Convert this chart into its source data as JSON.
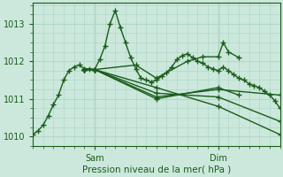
{
  "xlabel": "Pression niveau de la mer( hPa )",
  "bg_color": "#cce8dc",
  "grid_color": "#b0d8c8",
  "line_color": "#1a5c1a",
  "marker": "+",
  "linewidth": 1.0,
  "markersize": 4,
  "markeredgewidth": 1.0,
  "ylim": [
    1009.75,
    1013.55
  ],
  "xlim": [
    0,
    48
  ],
  "xtick_positions": [
    12,
    36
  ],
  "xtick_labels": [
    "Sam",
    "Dim"
  ],
  "ytick_positions": [
    1010,
    1011,
    1012,
    1013
  ],
  "vlines": [
    12,
    36
  ],
  "series": [
    {
      "x": [
        0,
        1,
        2,
        3,
        4,
        5,
        6,
        7,
        8,
        9,
        10,
        11,
        12,
        13,
        14,
        15,
        16,
        17,
        18,
        19,
        20,
        21,
        22,
        23,
        24,
        25,
        26,
        27,
        28,
        29,
        30,
        31,
        32,
        33,
        34,
        35,
        36,
        37,
        38,
        39,
        40,
        41,
        42,
        43,
        44,
        45,
        46,
        47,
        48
      ],
      "y": [
        1010.05,
        1010.15,
        1010.3,
        1010.55,
        1010.85,
        1011.1,
        1011.5,
        1011.75,
        1011.85,
        1011.9,
        1011.8,
        1011.8,
        1011.78,
        1012.05,
        1012.4,
        1013.0,
        1013.35,
        1012.9,
        1012.5,
        1012.1,
        1011.8,
        1011.55,
        1011.5,
        1011.45,
        1011.5,
        1011.6,
        1011.7,
        1011.85,
        1012.05,
        1012.15,
        1012.2,
        1012.1,
        1012.0,
        1011.95,
        1011.85,
        1011.8,
        1011.75,
        1011.85,
        1011.75,
        1011.65,
        1011.55,
        1011.5,
        1011.4,
        1011.35,
        1011.3,
        1011.2,
        1011.1,
        1010.95,
        1010.75
      ]
    },
    {
      "x": [
        10,
        12,
        24,
        36,
        48
      ],
      "y": [
        1011.78,
        1011.78,
        1011.3,
        1010.8,
        1010.05
      ]
    },
    {
      "x": [
        10,
        12,
        24,
        36,
        48
      ],
      "y": [
        1011.78,
        1011.78,
        1011.15,
        1011.05,
        1010.4
      ]
    },
    {
      "x": [
        10,
        12,
        24,
        36,
        48
      ],
      "y": [
        1011.78,
        1011.78,
        1011.05,
        1011.25,
        1011.1
      ]
    },
    {
      "x": [
        10,
        12,
        24,
        36,
        40
      ],
      "y": [
        1011.78,
        1011.78,
        1011.0,
        1011.3,
        1011.1
      ]
    },
    {
      "x": [
        10,
        12,
        20,
        24,
        30,
        33,
        36,
        37,
        38,
        40
      ],
      "y": [
        1011.78,
        1011.78,
        1011.9,
        1011.55,
        1012.0,
        1012.12,
        1012.12,
        1012.5,
        1012.25,
        1012.1
      ]
    }
  ]
}
